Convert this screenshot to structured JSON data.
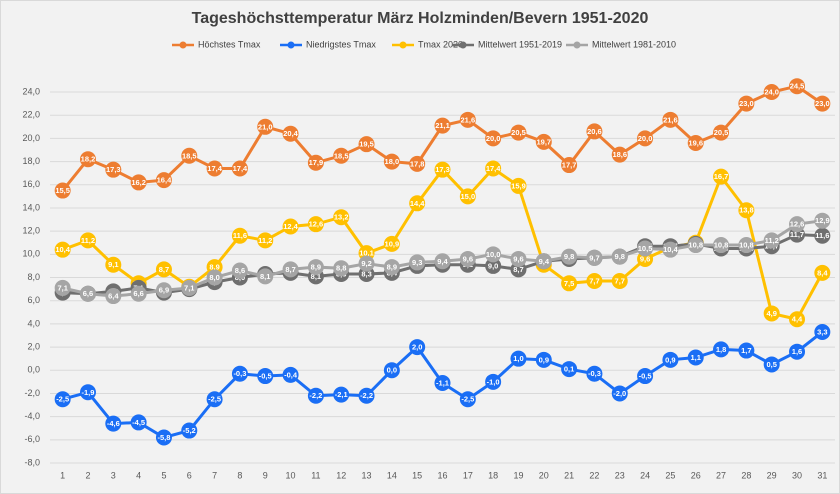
{
  "chart_data": {
    "type": "line",
    "title": "Tageshöchsttemperatur März Holzminden/Bevern 1951-2020",
    "categories": [
      1,
      2,
      3,
      4,
      5,
      6,
      7,
      8,
      9,
      10,
      11,
      12,
      13,
      14,
      15,
      16,
      17,
      18,
      19,
      20,
      21,
      22,
      23,
      24,
      25,
      26,
      27,
      28,
      29,
      30,
      31
    ],
    "ylim": [
      -8,
      24
    ],
    "yticks": [
      {
        "value": -8,
        "label": "-8,0"
      },
      {
        "value": -6,
        "label": "-6,0"
      },
      {
        "value": -4,
        "label": "-4,0"
      },
      {
        "value": -2,
        "label": "-2,0"
      },
      {
        "value": 0,
        "label": "0,0"
      },
      {
        "value": 2,
        "label": "2,0"
      },
      {
        "value": 4,
        "label": "4,0"
      },
      {
        "value": 6,
        "label": "6,0"
      },
      {
        "value": 8,
        "label": "8,0"
      },
      {
        "value": 10,
        "label": "10,0"
      },
      {
        "value": 12,
        "label": "12,0"
      },
      {
        "value": 14,
        "label": "14,0"
      },
      {
        "value": 16,
        "label": "16,0"
      },
      {
        "value": 18,
        "label": "18,0"
      },
      {
        "value": 20,
        "label": "20,0"
      },
      {
        "value": 22,
        "label": "22,0"
      },
      {
        "value": 24,
        "label": "24,0"
      }
    ],
    "grid": true,
    "legend": "top",
    "series": [
      {
        "name": "Höchstes Tmax",
        "color": "#ed7d31",
        "values": [
          15.5,
          18.2,
          17.3,
          16.2,
          16.4,
          18.5,
          17.4,
          17.4,
          21.0,
          20.4,
          17.9,
          18.5,
          19.5,
          18.0,
          17.8,
          21.1,
          21.6,
          20.0,
          20.5,
          19.7,
          17.7,
          20.6,
          18.6,
          20.0,
          21.6,
          19.6,
          20.5,
          23.0,
          24.0,
          24.5,
          23.0
        ],
        "value_labels": [
          "15,5",
          "18,2",
          "17,3",
          "16,2",
          "16,4",
          "18,5",
          "17,4",
          "17,4",
          "21,0",
          "20,4",
          "17,9",
          "18,5",
          "19,5",
          "18,0",
          "17,8",
          "21,1",
          "21,6",
          "20,0",
          "20,5",
          "19,7",
          "17,7",
          "20,6",
          "18,6",
          "20,0",
          "21,6",
          "19,6",
          "20,5",
          "23,0",
          "24,0",
          "24,5",
          "23,0"
        ]
      },
      {
        "name": "Niedrigstes Tmax",
        "color": "#1a6ef5",
        "values": [
          -2.5,
          -1.9,
          -4.6,
          -4.5,
          -5.8,
          -5.2,
          -2.5,
          -0.3,
          -0.5,
          -0.4,
          -2.2,
          -2.1,
          -2.2,
          0.0,
          2.0,
          -1.1,
          -2.5,
          -1.0,
          1.0,
          0.9,
          0.1,
          -0.3,
          -2.0,
          -0.5,
          0.9,
          1.1,
          1.8,
          1.7,
          0.5,
          1.6,
          3.3
        ],
        "value_labels": [
          "-2,5",
          "-1,9",
          "-4,6",
          "-4,5",
          "-5,8",
          "-5,2",
          "-2,5",
          "-0,3",
          "-0,5",
          "-0,4",
          "-2,2",
          "-2,1",
          "-2,2",
          "0,0",
          "2,0",
          "-1,1",
          "-2,5",
          "-1,0",
          "1,0",
          "0,9",
          "0,1",
          "-0,3",
          "-2,0",
          "-0,5",
          "0,9",
          "1,1",
          "1,8",
          "1,7",
          "0,5",
          "1,6",
          "3,3"
        ]
      },
      {
        "name": "Tmax 2020",
        "color": "#ffc000",
        "values": [
          10.4,
          11.2,
          9.1,
          7.5,
          8.7,
          7.2,
          8.9,
          11.6,
          11.2,
          12.4,
          12.6,
          13.2,
          10.1,
          10.9,
          14.4,
          17.3,
          15.0,
          17.4,
          15.9,
          9.1,
          7.5,
          7.7,
          7.7,
          9.6,
          10.6,
          11.0,
          16.7,
          13.8,
          4.9,
          4.4,
          8.4
        ],
        "value_labels": [
          "10,4",
          "11,2",
          "9,1",
          "7,5",
          "8,7",
          "7,2",
          "8,9",
          "11,6",
          "11,2",
          "12,4",
          "12,6",
          "13,2",
          "10,1",
          "10,9",
          "14,4",
          "17,3",
          "15,0",
          "17,4",
          "15,9",
          "9,1",
          "7,5",
          "7,7",
          "7,7",
          "9,6",
          "10,6",
          "11,0",
          "16,7",
          "13,8",
          "4,9",
          "4,4",
          "8,4"
        ]
      },
      {
        "name": "Mittelwert 1951-2019",
        "color": "#6f6f6f",
        "values": [
          6.7,
          6.6,
          6.8,
          7.1,
          6.7,
          7.0,
          7.6,
          8.0,
          8.3,
          8.4,
          8.1,
          8.3,
          8.3,
          8.4,
          9.0,
          9.1,
          9.1,
          9.0,
          8.7,
          9.4,
          9.6,
          9.7,
          9.8,
          10.7,
          10.7,
          10.9,
          10.5,
          10.5,
          10.7,
          11.7,
          11.6
        ],
        "value_labels": [
          "6,7",
          "6,6",
          "6,8",
          "7,1",
          "6,7",
          "7,0",
          "7,6",
          "8,0",
          "8,3",
          "8,4",
          "8,1",
          "8,3",
          "8,3",
          "8,4",
          "9,0",
          "9,1",
          "9,1",
          "9,0",
          "8,7",
          "9,4",
          "9,6",
          "9,7",
          "9,8",
          "10,7",
          "10,7",
          "10,9",
          "10,5",
          "10,5",
          "10,7",
          "11,7",
          "11,6"
        ]
      },
      {
        "name": "Mittelwert 1981-2010",
        "color": "#a5a5a5",
        "values": [
          7.1,
          6.6,
          6.4,
          6.6,
          6.9,
          7.1,
          8.0,
          8.6,
          8.1,
          8.7,
          8.9,
          8.8,
          9.2,
          8.9,
          9.3,
          9.4,
          9.6,
          10.0,
          9.6,
          9.4,
          9.8,
          9.7,
          9.8,
          10.5,
          10.4,
          10.8,
          10.8,
          10.8,
          11.2,
          12.6,
          12.9
        ],
        "value_labels": [
          "7,1",
          "6,6",
          "6,4",
          "6,6",
          "6,9",
          "7,1",
          "8,0",
          "8,6",
          "8,1",
          "8,7",
          "8,9",
          "8,8",
          "9,2",
          "8,9",
          "9,3",
          "9,4",
          "9,6",
          "10,0",
          "9,6",
          "9,4",
          "9,8",
          "9,7",
          "9,8",
          "10,5",
          "10,4",
          "10,8",
          "10,8",
          "10,8",
          "11,2",
          "12,6",
          "12,9"
        ]
      }
    ]
  }
}
